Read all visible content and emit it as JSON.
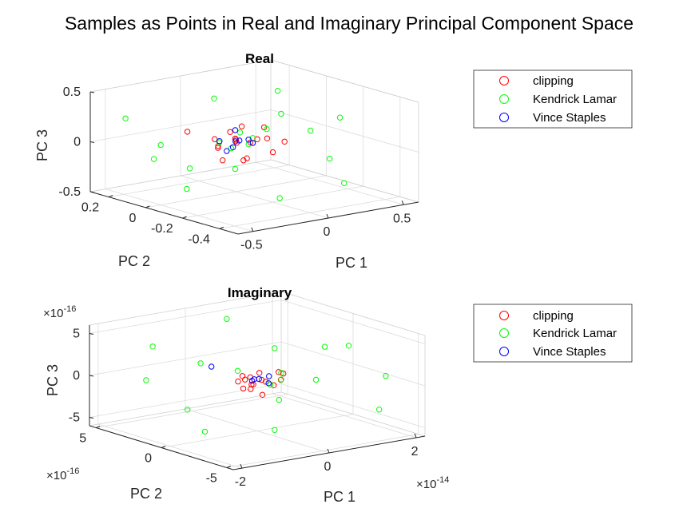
{
  "figure": {
    "title": "Samples as Points in Real and Imaginary Principal Component Space"
  },
  "chart_data": [
    {
      "type": "scatter",
      "title": "Real",
      "xlabel": "PC 1",
      "ylabel": "PC 2",
      "zlabel": "PC 3",
      "xlim": [
        -0.6,
        0.6
      ],
      "ylim": [
        -0.5,
        0.3
      ],
      "zlim": [
        -0.5,
        0.5
      ],
      "xticks": [
        -0.5,
        0,
        0.5
      ],
      "xtick_labels": [
        "-0.5",
        "0",
        "0.5"
      ],
      "yticks": [
        -0.4,
        -0.2,
        0,
        0.2
      ],
      "ytick_labels": [
        "-0.4",
        "-0.2",
        "0",
        "0.2"
      ],
      "zticks": [
        -0.5,
        0,
        0.5
      ],
      "ztick_labels": [
        "-0.5",
        "0",
        "0.5"
      ],
      "grid": true,
      "legend_position": "right",
      "series": [
        {
          "name": "clipping",
          "color": "#ff0000",
          "points": [
            [
              -0.1,
              -0.05,
              0.15
            ],
            [
              0.1,
              0.05,
              0.1
            ],
            [
              -0.05,
              -0.1,
              -0.1
            ],
            [
              0.05,
              0.0,
              -0.2
            ],
            [
              -0.2,
              0.1,
              0.1
            ],
            [
              0.0,
              -0.2,
              0.0
            ],
            [
              0.2,
              -0.1,
              0.0
            ],
            [
              -0.08,
              0.05,
              0.02
            ],
            [
              0.08,
              -0.05,
              0.03
            ],
            [
              0.0,
              0.0,
              0.02
            ],
            [
              0.03,
              0.02,
              -0.03
            ],
            [
              -0.03,
              -0.02,
              0.05
            ],
            [
              0.12,
              0.02,
              -0.05
            ],
            [
              -0.12,
              0.0,
              -0.03
            ],
            [
              0.06,
              -0.12,
              0.08
            ],
            [
              -0.15,
              -0.05,
              -0.12
            ],
            [
              0.15,
              -0.03,
              0.12
            ],
            [
              -0.02,
              0.08,
              -0.08
            ]
          ]
        },
        {
          "name": "Kendrick Lamar",
          "color": "#00ff00",
          "points": [
            [
              -0.55,
              0.15,
              0.3
            ],
            [
              0.4,
              0.1,
              0.35
            ],
            [
              0.5,
              -0.1,
              -0.25
            ],
            [
              -0.45,
              -0.1,
              -0.3
            ],
            [
              0.2,
              -0.4,
              0.4
            ],
            [
              -0.3,
              0.2,
              -0.2
            ],
            [
              0.35,
              -0.3,
              -0.35
            ],
            [
              -0.4,
              -0.3,
              0.2
            ],
            [
              0.1,
              0.2,
              0.3
            ],
            [
              -0.2,
              -0.4,
              -0.3
            ],
            [
              0.45,
              0.2,
              -0.1
            ],
            [
              0.0,
              0.25,
              -0.4
            ],
            [
              -0.5,
              0.0,
              0.1
            ],
            [
              0.3,
              0.0,
              0.2
            ],
            [
              0.05,
              -0.05,
              0.05
            ],
            [
              -0.05,
              0.05,
              -0.02
            ],
            [
              0.15,
              0.1,
              0.0
            ],
            [
              -0.1,
              -0.15,
              0.08
            ],
            [
              0.25,
              -0.2,
              0.15
            ],
            [
              -0.25,
              -0.2,
              -0.1
            ]
          ]
        },
        {
          "name": "Vince Staples",
          "color": "#0000ff",
          "points": [
            [
              0.02,
              0.02,
              0.1
            ],
            [
              -0.02,
              0.0,
              -0.05
            ],
            [
              0.05,
              -0.05,
              0.0
            ],
            [
              0.0,
              0.05,
              -0.12
            ],
            [
              -0.04,
              -0.03,
              0.03
            ],
            [
              0.06,
              0.03,
              -0.02
            ],
            [
              0.01,
              -0.06,
              0.05
            ],
            [
              -0.06,
              0.04,
              0.0
            ]
          ]
        }
      ]
    },
    {
      "type": "scatter",
      "title": "Imaginary",
      "xlabel": "PC 1",
      "ylabel": "PC 2",
      "zlabel": "PC 3",
      "xlim": [
        -2.2,
        2.2
      ],
      "ylim": [
        -5.5,
        5.5
      ],
      "zlim": [
        -6,
        6
      ],
      "xticks": [
        -2,
        0,
        2
      ],
      "xtick_labels": [
        "-2",
        "0",
        "2"
      ],
      "yticks": [
        -5,
        0,
        5
      ],
      "ytick_labels": [
        "-5",
        "0",
        "5"
      ],
      "zticks": [
        -5,
        0,
        5
      ],
      "ztick_labels": [
        "-5",
        "0",
        "5"
      ],
      "x_exponent": "-14",
      "y_exponent": "-16",
      "z_exponent": "-16",
      "grid": true,
      "legend_position": "right",
      "series": [
        {
          "name": "clipping",
          "color": "#ff0000",
          "points": [
            [
              0.2,
              0.5,
              0.5
            ],
            [
              -0.3,
              -0.5,
              -0.5
            ],
            [
              0.4,
              -0.3,
              0.8
            ],
            [
              -0.2,
              0.8,
              -0.3
            ],
            [
              0.1,
              0.0,
              0.0
            ],
            [
              0.5,
              0.4,
              -1.2
            ],
            [
              -0.4,
              -0.2,
              1.0
            ],
            [
              0.0,
              0.3,
              -0.6
            ],
            [
              0.3,
              -0.8,
              0.2
            ],
            [
              -0.1,
              0.2,
              0.4
            ],
            [
              0.15,
              -0.15,
              -0.2
            ],
            [
              -0.25,
              0.1,
              0.3
            ],
            [
              0.05,
              0.6,
              -0.8
            ],
            [
              0.6,
              0.0,
              0.3
            ],
            [
              -0.5,
              -0.6,
              -0.2
            ],
            [
              0.0,
              -0.4,
              -1.5
            ]
          ]
        },
        {
          "name": "Kendrick Lamar",
          "color": "#00ff00",
          "points": [
            [
              -1.5,
              3.0,
              4.0
            ],
            [
              1.8,
              -1.0,
              3.0
            ],
            [
              1.6,
              -4.0,
              -3.0
            ],
            [
              -1.8,
              -2.0,
              -3.5
            ],
            [
              0.5,
              4.0,
              5.0
            ],
            [
              -0.8,
              -4.5,
              3.0
            ],
            [
              1.2,
              3.0,
              -3.0
            ],
            [
              -1.2,
              4.5,
              -1.0
            ],
            [
              0.8,
              -2.5,
              4.5
            ],
            [
              -0.5,
              -3.0,
              -4.0
            ],
            [
              1.0,
              2.0,
              2.0
            ],
            [
              -1.0,
              1.0,
              2.5
            ],
            [
              0.2,
              -1.0,
              -2.0
            ],
            [
              1.5,
              0.5,
              -1.5
            ],
            [
              -0.3,
              0.5,
              1.2
            ],
            [
              0.4,
              -0.5,
              0.8
            ],
            [
              1.9,
              -3.5,
              0.5
            ],
            [
              -1.6,
              0.0,
              -2.0
            ]
          ]
        },
        {
          "name": "Vince Staples",
          "color": "#0000ff",
          "points": [
            [
              0.1,
              0.2,
              0.0
            ],
            [
              -0.1,
              -0.1,
              0.3
            ],
            [
              0.2,
              -0.2,
              -0.4
            ],
            [
              -0.6,
              1.5,
              1.5
            ],
            [
              0.0,
              0.4,
              -0.2
            ],
            [
              0.3,
              0.1,
              0.2
            ]
          ]
        }
      ]
    }
  ]
}
